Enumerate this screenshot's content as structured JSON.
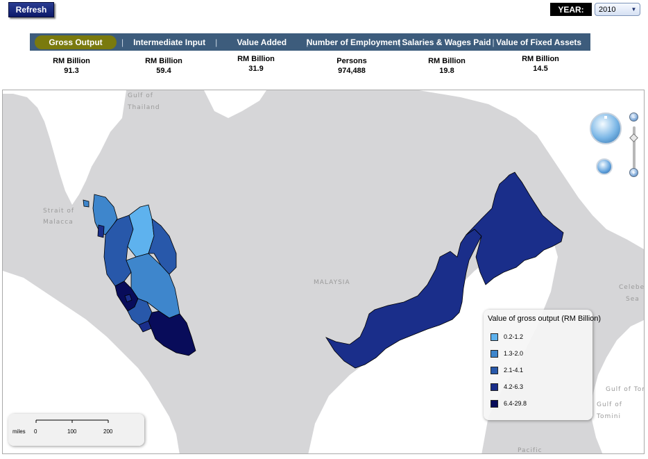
{
  "toolbar": {
    "refresh_label": "Refresh"
  },
  "year": {
    "label": "YEAR:",
    "selected": "2010",
    "arrow": "▼"
  },
  "tabs": [
    {
      "label": "Gross Output",
      "active": true
    },
    {
      "label": "Intermediate Input",
      "active": false
    },
    {
      "label": "Value Added",
      "active": false
    },
    {
      "label": "Number of Employment",
      "active": false
    },
    {
      "label": "Salaries & Wages Paid",
      "active": false
    },
    {
      "label": "Value of Fixed Assets",
      "active": false
    }
  ],
  "tab_separator": "|",
  "metrics": [
    {
      "unit": "RM Billion",
      "value": "91.3"
    },
    {
      "unit": "RM Billion",
      "value": "59.4"
    },
    {
      "unit": "RM Billion",
      "value": "31.9"
    },
    {
      "unit": "Persons",
      "value": "974,488"
    },
    {
      "unit": "RM Billion",
      "value": "19.8"
    },
    {
      "unit": "RM Billion",
      "value": "14.5"
    }
  ],
  "map": {
    "place_labels": {
      "gulf_thailand_1": "Gulf of",
      "gulf_thailand_2": "Thailand",
      "malacca_1": "Strait of",
      "malacca_2": "Malacca",
      "malaysia": "MALAYSIA",
      "celebes_1": "Celebes",
      "celebes_2": "Sea",
      "gulf_tomini_1": "Gulf of Tomi",
      "gulf_tomini_2": "Gulf of",
      "gulf_tomini_3": "Tomini",
      "pacific": "Pacific"
    },
    "colors": {
      "sea": "#d6d6d8",
      "land": "#ffffff",
      "class_1": "#5eb2ee",
      "class_2": "#3e86cc",
      "class_3": "#2858aa",
      "class_4": "#1a2e8a",
      "class_5": "#080c5a"
    }
  },
  "legend": {
    "title": "Value of gross output (RM Billion)",
    "items": [
      {
        "label": "0.2-1.2",
        "color": "#5eb2ee"
      },
      {
        "label": "1.3-2.0",
        "color": "#3e86cc"
      },
      {
        "label": "2.1-4.1",
        "color": "#2858aa"
      },
      {
        "label": "4.2-6.3",
        "color": "#1a2e8a"
      },
      {
        "label": "6.4-29.8",
        "color": "#080c5a"
      }
    ]
  },
  "scale": {
    "unit": "miles",
    "ticks": [
      "0",
      "100",
      "200"
    ]
  },
  "zoom": {
    "in_label": "+",
    "out_label": "−"
  }
}
